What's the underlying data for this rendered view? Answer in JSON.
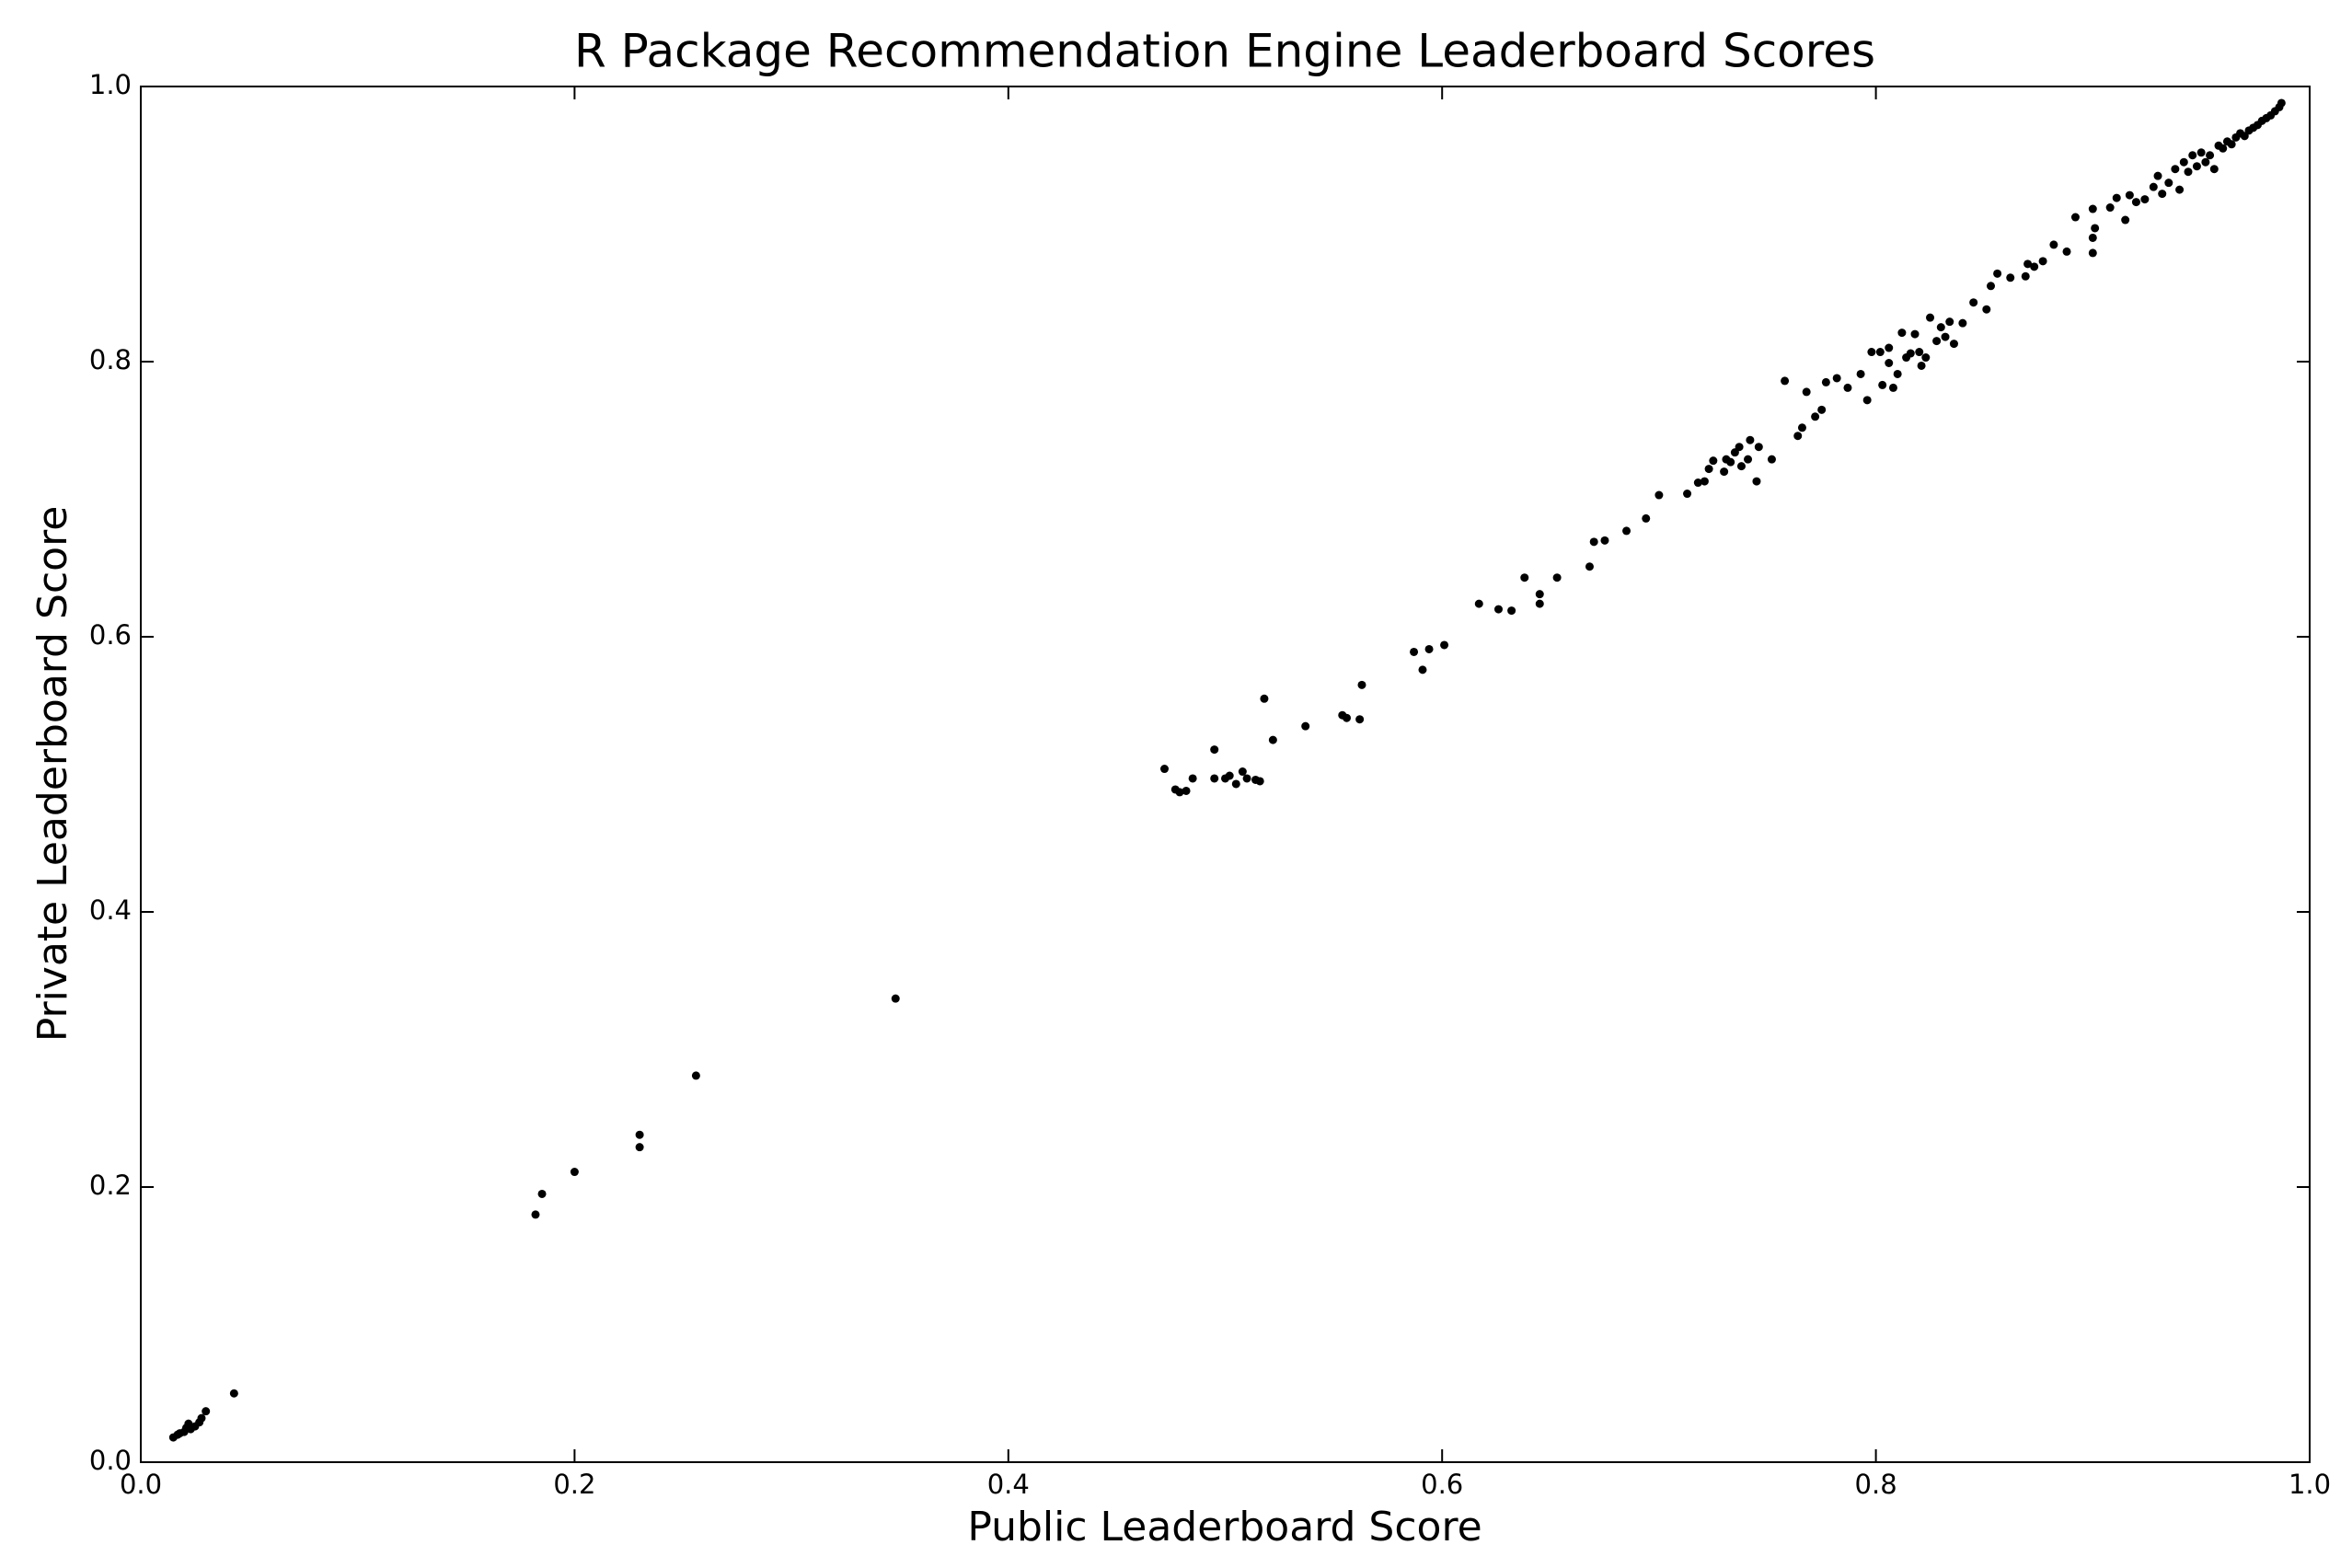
{
  "chart_data": {
    "type": "scatter",
    "title": "R Package Recommendation Engine Leaderboard Scores",
    "xlabel": "Public Leaderboard Score",
    "ylabel": "Private Leaderboard Score",
    "color": "#000000",
    "xlim": [
      0,
      1
    ],
    "ylim": [
      0,
      1
    ],
    "xticks": [
      {
        "value": 0,
        "label": "0.0"
      },
      0.2,
      0.4,
      0.6,
      0.8,
      {
        "value": 1,
        "label": "1.0"
      }
    ],
    "yticks": [
      {
        "value": 0,
        "label": "0.0"
      },
      0.2,
      0.4,
      0.6,
      0.8,
      {
        "value": 1,
        "label": "1.0"
      }
    ],
    "grid": false,
    "x": [
      0.015,
      0.017,
      0.018,
      0.02,
      0.021,
      0.022,
      0.023,
      0.025,
      0.027,
      0.028,
      0.03,
      0.043,
      0.182,
      0.185,
      0.2,
      0.23,
      0.23,
      0.256,
      0.348,
      0.472,
      0.477,
      0.479,
      0.482,
      0.485,
      0.495,
      0.495,
      0.5,
      0.502,
      0.505,
      0.508,
      0.51,
      0.514,
      0.516,
      0.518,
      0.522,
      0.537,
      0.554,
      0.556,
      0.562,
      0.563,
      0.587,
      0.591,
      0.594,
      0.601,
      0.617,
      0.626,
      0.632,
      0.638,
      0.645,
      0.645,
      0.653,
      0.668,
      0.67,
      0.675,
      0.685,
      0.694,
      0.7,
      0.713,
      0.718,
      0.721,
      0.723,
      0.725,
      0.73,
      0.731,
      0.733,
      0.735,
      0.737,
      0.738,
      0.741,
      0.742,
      0.745,
      0.746,
      0.752,
      0.758,
      0.764,
      0.766,
      0.768,
      0.772,
      0.775,
      0.777,
      0.782,
      0.787,
      0.793,
      0.796,
      0.798,
      0.802,
      0.803,
      0.806,
      0.806,
      0.808,
      0.81,
      0.812,
      0.814,
      0.816,
      0.818,
      0.82,
      0.821,
      0.823,
      0.825,
      0.828,
      0.83,
      0.832,
      0.834,
      0.836,
      0.84,
      0.845,
      0.851,
      0.853,
      0.856,
      0.862,
      0.869,
      0.87,
      0.873,
      0.877,
      0.882,
      0.888,
      0.892,
      0.9,
      0.9,
      0.9,
      0.901,
      0.908,
      0.911,
      0.915,
      0.917,
      0.92,
      0.924,
      0.928,
      0.93,
      0.932,
      0.935,
      0.938,
      0.94,
      0.942,
      0.944,
      0.946,
      0.948,
      0.95,
      0.952,
      0.954,
      0.956,
      0.958,
      0.96,
      0.962,
      0.964,
      0.966,
      0.968,
      0.97,
      0.972,
      0.974,
      0.976,
      0.978,
      0.98,
      0.982,
      0.984,
      0.986,
      0.987
    ],
    "values": [
      0.018,
      0.02,
      0.021,
      0.022,
      0.025,
      0.028,
      0.024,
      0.026,
      0.029,
      0.032,
      0.037,
      0.05,
      0.18,
      0.195,
      0.211,
      0.238,
      0.229,
      0.281,
      0.337,
      0.504,
      0.489,
      0.487,
      0.488,
      0.497,
      0.497,
      0.518,
      0.497,
      0.499,
      0.493,
      0.502,
      0.497,
      0.496,
      0.495,
      0.555,
      0.525,
      0.535,
      0.543,
      0.541,
      0.54,
      0.565,
      0.589,
      0.576,
      0.591,
      0.594,
      0.624,
      0.62,
      0.619,
      0.643,
      0.631,
      0.624,
      0.643,
      0.651,
      0.669,
      0.67,
      0.677,
      0.686,
      0.703,
      0.704,
      0.712,
      0.713,
      0.722,
      0.728,
      0.72,
      0.729,
      0.727,
      0.734,
      0.738,
      0.724,
      0.729,
      0.743,
      0.713,
      0.738,
      0.729,
      0.786,
      0.746,
      0.752,
      0.778,
      0.76,
      0.765,
      0.785,
      0.788,
      0.781,
      0.791,
      0.772,
      0.807,
      0.807,
      0.783,
      0.81,
      0.799,
      0.781,
      0.791,
      0.821,
      0.803,
      0.806,
      0.82,
      0.807,
      0.797,
      0.803,
      0.832,
      0.815,
      0.825,
      0.818,
      0.829,
      0.813,
      0.828,
      0.843,
      0.838,
      0.855,
      0.864,
      0.861,
      0.862,
      0.871,
      0.869,
      0.873,
      0.885,
      0.88,
      0.905,
      0.911,
      0.89,
      0.879,
      0.897,
      0.912,
      0.919,
      0.903,
      0.921,
      0.916,
      0.918,
      0.927,
      0.935,
      0.922,
      0.93,
      0.94,
      0.925,
      0.945,
      0.938,
      0.95,
      0.942,
      0.952,
      0.945,
      0.95,
      0.94,
      0.957,
      0.955,
      0.96,
      0.958,
      0.963,
      0.966,
      0.964,
      0.968,
      0.97,
      0.972,
      0.975,
      0.977,
      0.979,
      0.982,
      0.985,
      0.988
    ]
  }
}
